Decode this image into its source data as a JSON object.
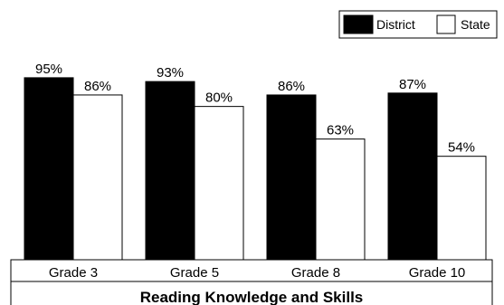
{
  "chart_data": {
    "type": "bar",
    "categories": [
      "Grade 3",
      "Grade 5",
      "Grade 8",
      "Grade 10"
    ],
    "series": [
      {
        "name": "District",
        "values": [
          95,
          93,
          86,
          87
        ],
        "labels": [
          "95%",
          "93%",
          "86%",
          "87%"
        ],
        "color": "#000000"
      },
      {
        "name": "State",
        "values": [
          86,
          80,
          63,
          54
        ],
        "labels": [
          "86%",
          "80%",
          "63%",
          "54%"
        ],
        "color": "#ffffff"
      }
    ],
    "title": "",
    "xlabel": "Reading Knowledge and Skills",
    "ylabel": "",
    "ylim": [
      0,
      100
    ],
    "grid": false,
    "legend": "top-right"
  }
}
